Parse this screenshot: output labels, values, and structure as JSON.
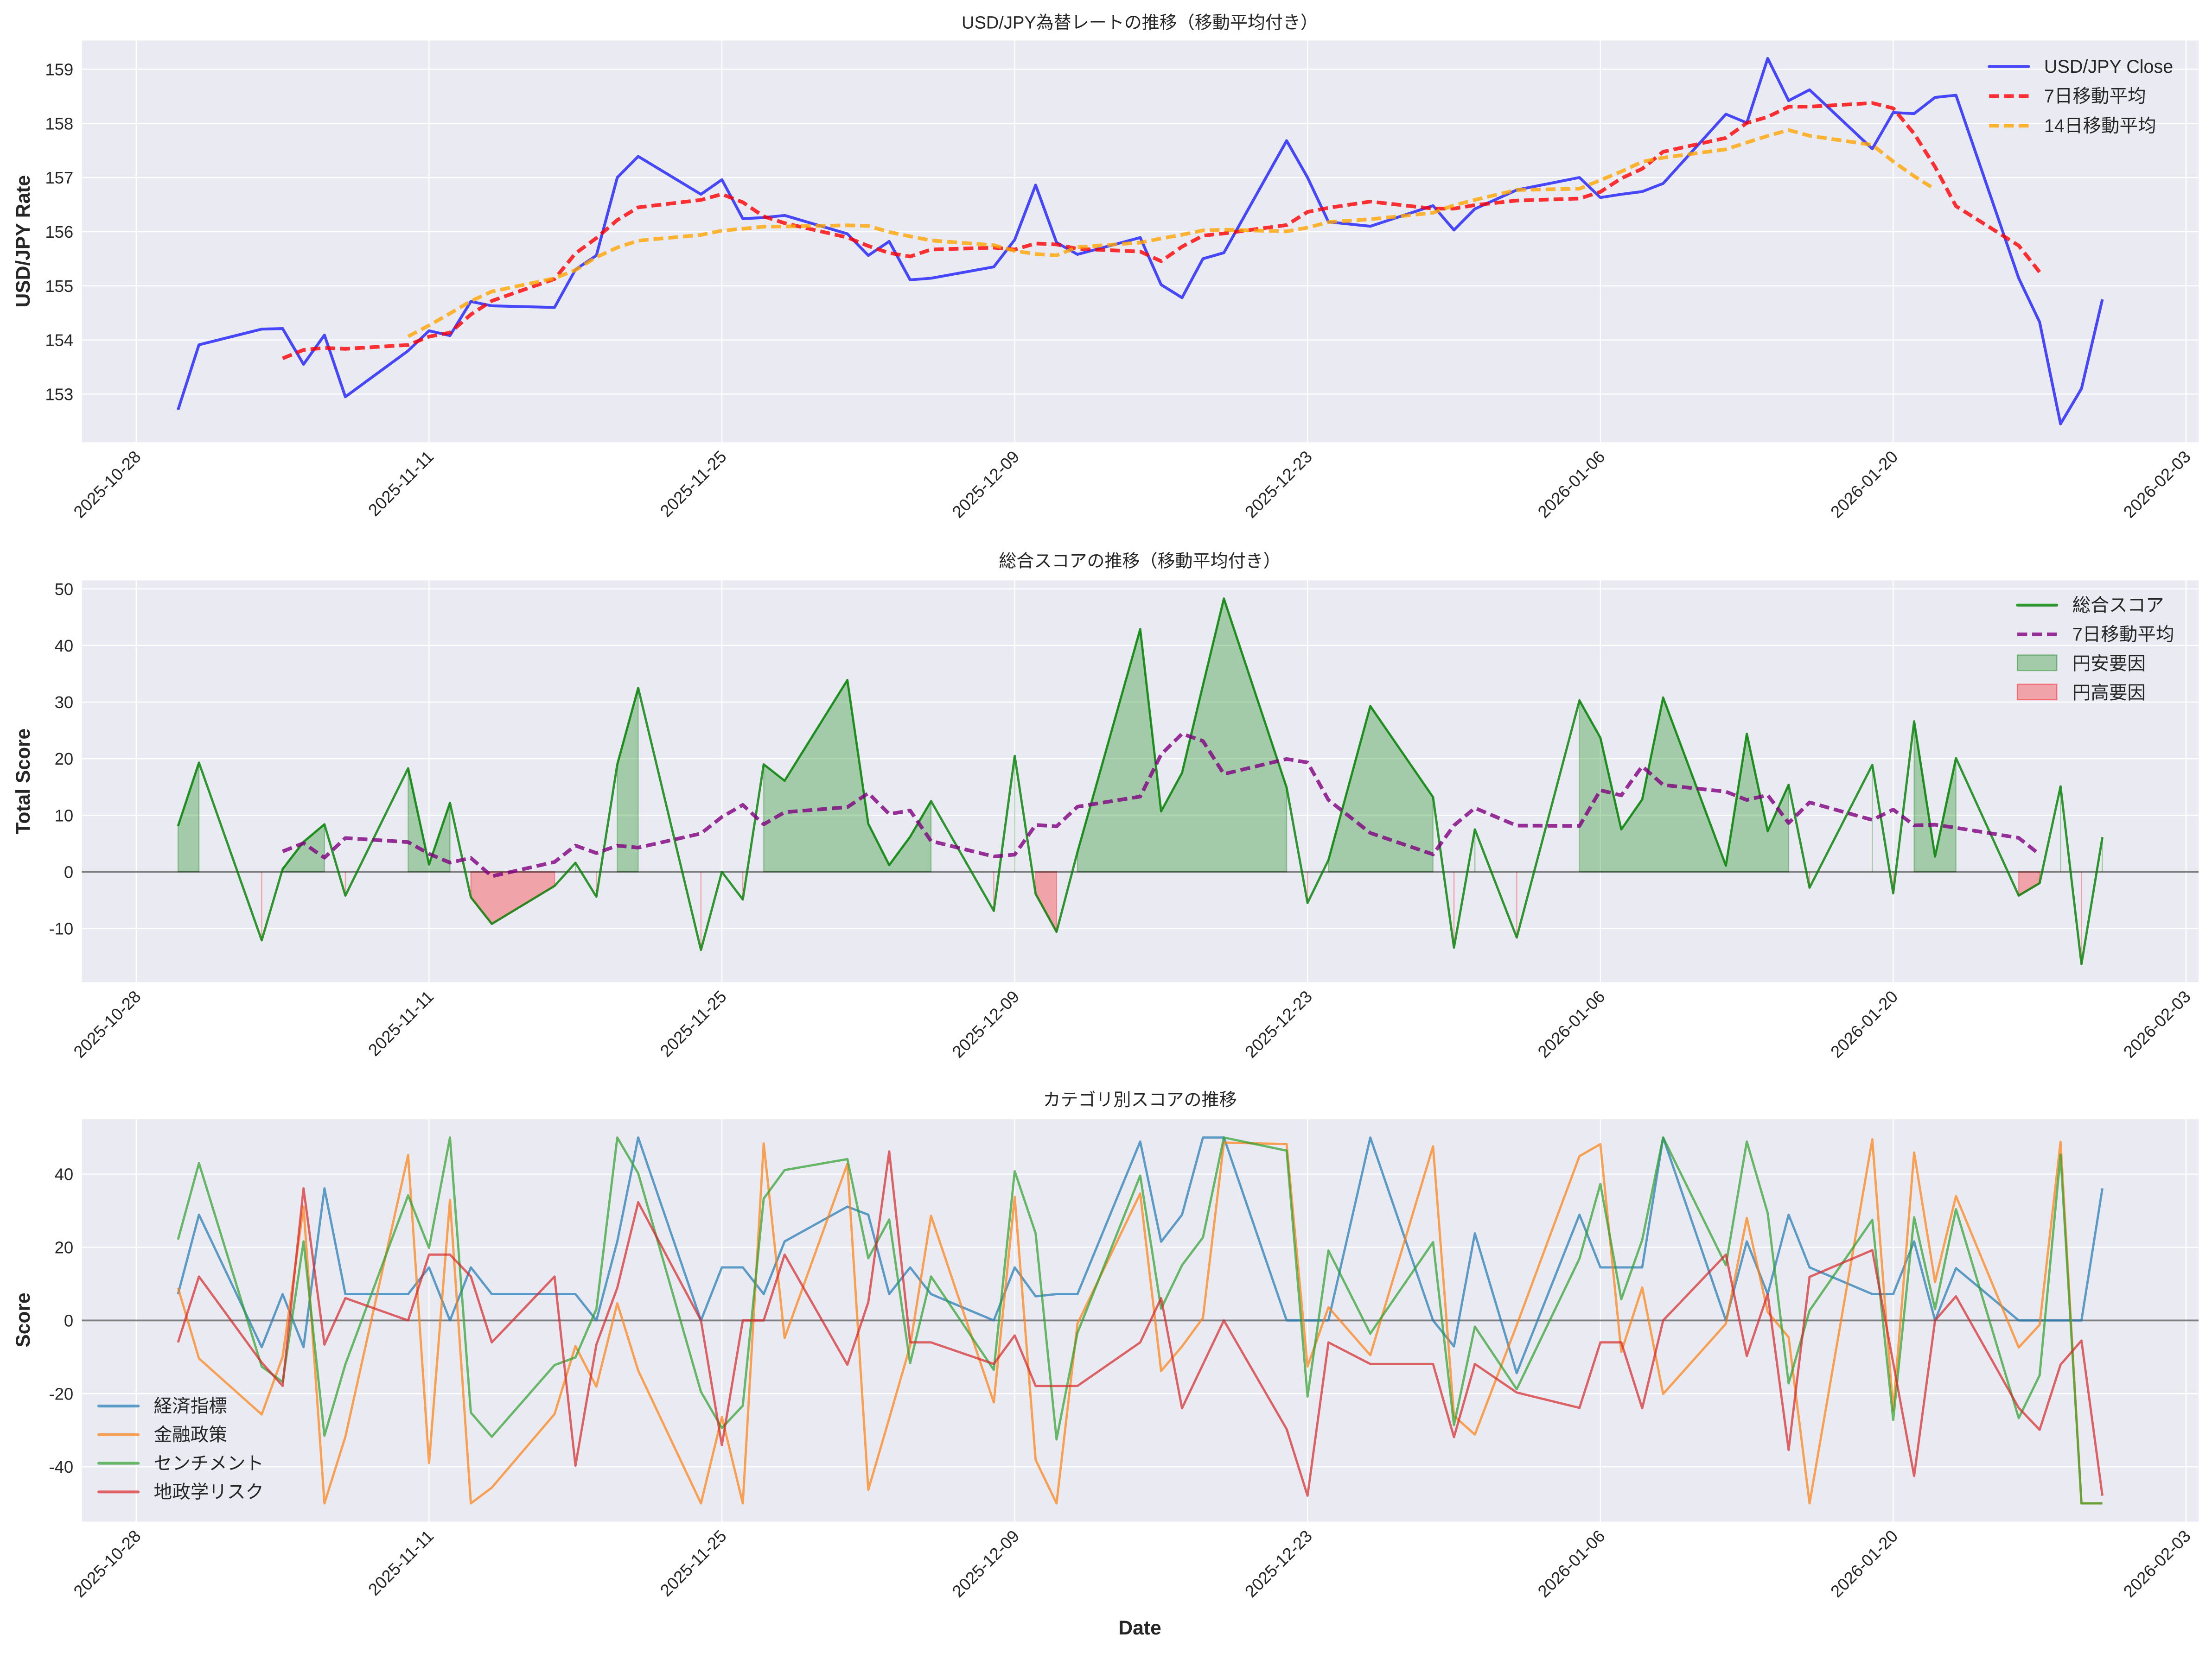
{
  "figure": {
    "xlabel": "Date",
    "background": "#eaeaf2",
    "grid_color": "#ffffff"
  },
  "chart_data": [
    {
      "type": "line",
      "title": "USD/JPY為替レートの推移（移動平均付き）",
      "xlabel": "",
      "ylabel": "USD/JPY Rate",
      "ylim": [
        152.11,
        159.53
      ],
      "y_ticks": [
        153,
        154,
        155,
        156,
        157,
        158,
        159
      ],
      "x_ticks": [
        "2025-10-28",
        "2025-11-11",
        "2025-11-25",
        "2025-12-09",
        "2025-12-23",
        "2026-01-06",
        "2026-01-20",
        "2026-02-03"
      ],
      "grid": true,
      "legend": "upper right",
      "x": [
        "2025-10-30",
        "2025-10-31",
        "2025-11-03",
        "2025-11-04",
        "2025-11-05",
        "2025-11-06",
        "2025-11-07",
        "2025-11-10",
        "2025-11-11",
        "2025-11-12",
        "2025-11-13",
        "2025-11-14",
        "2025-11-17",
        "2025-11-18",
        "2025-11-19",
        "2025-11-20",
        "2025-11-21",
        "2025-11-24",
        "2025-11-25",
        "2025-11-26",
        "2025-11-27",
        "2025-11-28",
        "2025-12-01",
        "2025-12-02",
        "2025-12-03",
        "2025-12-04",
        "2025-12-05",
        "2025-12-08",
        "2025-12-09",
        "2025-12-10",
        "2025-12-11",
        "2025-12-12",
        "2025-12-15",
        "2025-12-16",
        "2025-12-17",
        "2025-12-18",
        "2025-12-19",
        "2025-12-22",
        "2025-12-23",
        "2025-12-24",
        "2025-12-26",
        "2025-12-29",
        "2025-12-30",
        "2025-12-31",
        "2026-01-02",
        "2026-01-05",
        "2026-01-06",
        "2026-01-07",
        "2026-01-08",
        "2026-01-09",
        "2026-01-12",
        "2026-01-13",
        "2026-01-14",
        "2026-01-15",
        "2026-01-16",
        "2026-01-19",
        "2026-01-20",
        "2026-01-21",
        "2026-01-22",
        "2026-01-23",
        "2026-01-26",
        "2026-01-27",
        "2026-01-28",
        "2026-01-29",
        "2026-01-30"
      ],
      "series": [
        {
          "name": "USD/JPY Close",
          "kind": "line",
          "color": "#0000ff",
          "alpha": 0.7,
          "dashed": false,
          "values": [
            152.71,
            153.91,
            154.2,
            154.21,
            153.55,
            154.09,
            152.95,
            153.8,
            154.17,
            154.08,
            154.71,
            154.63,
            154.6,
            155.3,
            155.56,
            157.0,
            157.39,
            156.69,
            156.96,
            156.24,
            156.26,
            156.3,
            155.96,
            155.56,
            155.82,
            155.11,
            155.14,
            155.35,
            155.85,
            156.86,
            155.8,
            155.58,
            155.89,
            155.02,
            154.78,
            155.5,
            155.61,
            157.68,
            157.0,
            156.18,
            156.1,
            156.48,
            156.03,
            156.42,
            156.77,
            157.0,
            156.63,
            156.69,
            156.74,
            156.89,
            158.17,
            158.01,
            159.2,
            158.42,
            158.62,
            157.53,
            158.2,
            158.18,
            158.48,
            158.52,
            155.14,
            154.33,
            152.45,
            153.1,
            154.75
          ]
        },
        {
          "name": "7日移動平均",
          "kind": "rolling",
          "source": 0,
          "window": 7,
          "color": "#ff0000",
          "alpha": 0.8,
          "dashed": true
        },
        {
          "name": "14日移動平均",
          "kind": "rolling",
          "source": 0,
          "window": 14,
          "color": "#ffa500",
          "alpha": 0.8,
          "dashed": true
        }
      ]
    },
    {
      "type": "area",
      "title": "総合スコアの推移（移動平均付き）",
      "xlabel": "",
      "ylabel": "Total Score",
      "ylim": [
        -19.5,
        51.5
      ],
      "y_ticks": [
        -10,
        0,
        10,
        20,
        30,
        40,
        50
      ],
      "x_ticks": [
        "2025-10-28",
        "2025-11-11",
        "2025-11-25",
        "2025-12-09",
        "2025-12-23",
        "2026-01-06",
        "2026-01-20",
        "2026-02-03"
      ],
      "grid": true,
      "hline": 0,
      "legend": "upper right",
      "x": [
        "2025-10-30",
        "2025-10-31",
        "2025-11-03",
        "2025-11-04",
        "2025-11-05",
        "2025-11-06",
        "2025-11-07",
        "2025-11-10",
        "2025-11-11",
        "2025-11-12",
        "2025-11-13",
        "2025-11-14",
        "2025-11-17",
        "2025-11-18",
        "2025-11-19",
        "2025-11-20",
        "2025-11-21",
        "2025-11-24",
        "2025-11-25",
        "2025-11-26",
        "2025-11-27",
        "2025-11-28",
        "2025-12-01",
        "2025-12-02",
        "2025-12-03",
        "2025-12-04",
        "2025-12-05",
        "2025-12-08",
        "2025-12-09",
        "2025-12-10",
        "2025-12-11",
        "2025-12-12",
        "2025-12-15",
        "2025-12-16",
        "2025-12-17",
        "2025-12-18",
        "2025-12-19",
        "2025-12-22",
        "2025-12-23",
        "2025-12-24",
        "2025-12-26",
        "2025-12-29",
        "2025-12-30",
        "2025-12-31",
        "2026-01-02",
        "2026-01-05",
        "2026-01-06",
        "2026-01-07",
        "2026-01-08",
        "2026-01-09",
        "2026-01-12",
        "2026-01-13",
        "2026-01-14",
        "2026-01-15",
        "2026-01-16",
        "2026-01-19",
        "2026-01-20",
        "2026-01-21",
        "2026-01-22",
        "2026-01-23",
        "2026-01-26",
        "2026-01-27",
        "2026-01-28",
        "2026-01-29",
        "2026-01-30"
      ],
      "series": [
        {
          "name": "総合スコア",
          "kind": "line",
          "color": "#008000",
          "alpha": 0.8,
          "dashed": false,
          "values": [
            8.1,
            19.3,
            -12.1,
            0.5,
            5.3,
            8.4,
            -4.2,
            18.3,
            1.3,
            12.2,
            -4.5,
            -9.2,
            -2.5,
            1.6,
            -4.4,
            19.0,
            32.5,
            -13.8,
            0.0,
            -4.9,
            19.0,
            16.1,
            33.9,
            8.5,
            1.2,
            6.2,
            12.5,
            -6.9,
            20.5,
            -3.9,
            -10.6,
            3.5,
            42.9,
            10.7,
            17.5,
            33.0,
            48.3,
            14.9,
            -5.5,
            2.1,
            29.3,
            13.2,
            -13.4,
            7.5,
            -11.6,
            30.3,
            23.7,
            7.5,
            12.8,
            30.8,
            1.1,
            24.4,
            7.2,
            15.4,
            -2.8,
            18.9,
            -3.8,
            26.6,
            2.7,
            20.1,
            -4.2,
            -2.0,
            15.1,
            -16.3,
            6.1
          ]
        },
        {
          "name": "7日移動平均",
          "kind": "rolling",
          "source": 0,
          "window": 7,
          "color": "#800080",
          "alpha": 0.8,
          "dashed": true
        },
        {
          "name": "円安要因",
          "kind": "fill",
          "source": 0,
          "where": "positive",
          "color": "#008000",
          "alpha": 0.3
        },
        {
          "name": "円高要因",
          "kind": "fill",
          "source": 0,
          "where": "negative",
          "color": "#ff0000",
          "alpha": 0.3
        }
      ]
    },
    {
      "type": "line",
      "title": "カテゴリ別スコアの推移",
      "xlabel": "Date",
      "ylabel": "Score",
      "ylim": [
        -55,
        55
      ],
      "y_ticks": [
        -40,
        -20,
        0,
        20,
        40
      ],
      "x_ticks": [
        "2025-10-28",
        "2025-11-11",
        "2025-11-25",
        "2025-12-09",
        "2025-12-23",
        "2026-01-06",
        "2026-01-20",
        "2026-02-03"
      ],
      "grid": true,
      "hline": 0,
      "legend": "lower left",
      "x": [
        "2025-10-30",
        "2025-10-31",
        "2025-11-03",
        "2025-11-04",
        "2025-11-05",
        "2025-11-06",
        "2025-11-07",
        "2025-11-10",
        "2025-11-11",
        "2025-11-12",
        "2025-11-13",
        "2025-11-14",
        "2025-11-17",
        "2025-11-18",
        "2025-11-19",
        "2025-11-20",
        "2025-11-21",
        "2025-11-24",
        "2025-11-25",
        "2025-11-26",
        "2025-11-27",
        "2025-11-28",
        "2025-12-01",
        "2025-12-02",
        "2025-12-03",
        "2025-12-04",
        "2025-12-05",
        "2025-12-08",
        "2025-12-09",
        "2025-12-10",
        "2025-12-11",
        "2025-12-12",
        "2025-12-15",
        "2025-12-16",
        "2025-12-17",
        "2025-12-18",
        "2025-12-19",
        "2025-12-22",
        "2025-12-23",
        "2025-12-24",
        "2025-12-26",
        "2025-12-29",
        "2025-12-30",
        "2025-12-31",
        "2026-01-02",
        "2026-01-05",
        "2026-01-06",
        "2026-01-07",
        "2026-01-08",
        "2026-01-09",
        "2026-01-12",
        "2026-01-13",
        "2026-01-14",
        "2026-01-15",
        "2026-01-16",
        "2026-01-19",
        "2026-01-20",
        "2026-01-21",
        "2026-01-22",
        "2026-01-23",
        "2026-01-26",
        "2026-01-27",
        "2026-01-28",
        "2026-01-29",
        "2026-01-30"
      ],
      "series": [
        {
          "name": "経済指標",
          "kind": "line",
          "color": "#1f77b4",
          "alpha": 0.7,
          "dashed": false,
          "values": [
            7.2,
            28.9,
            -7.3,
            7.2,
            -7.3,
            36.1,
            7.2,
            7.2,
            14.5,
            0,
            14.5,
            7.2,
            7.2,
            7.2,
            0,
            21.6,
            50,
            0,
            14.5,
            14.5,
            7.2,
            21.6,
            31.1,
            28.9,
            7.2,
            14.5,
            7.2,
            0,
            14.5,
            6.6,
            7.2,
            7.2,
            48.9,
            21.5,
            28.9,
            50,
            50,
            0,
            0,
            0,
            50,
            0,
            -7.1,
            23.8,
            -14.4,
            28.9,
            14.5,
            14.5,
            14.5,
            50,
            0,
            21.6,
            7.2,
            28.9,
            14.5,
            7.2,
            7.2,
            21.6,
            0,
            14.3,
            0,
            0,
            0,
            0,
            36.1
          ]
        },
        {
          "name": "金融政策",
          "kind": "line",
          "color": "#ff7f0e",
          "alpha": 0.7,
          "dashed": false,
          "values": [
            8.9,
            -10.4,
            -25.7,
            -9.9,
            31.1,
            -50,
            -31.8,
            45.2,
            -39.0,
            32.9,
            -50,
            -45.7,
            -25.6,
            -7.0,
            -18.1,
            4.7,
            -13.7,
            -50,
            -26.4,
            -50,
            48.4,
            -4.8,
            42.8,
            -46.3,
            -26.8,
            -7.0,
            28.6,
            -22.4,
            33.8,
            -38.1,
            -50,
            -0.9,
            34.7,
            -13.8,
            -7.1,
            0.7,
            48.6,
            48.2,
            -12.6,
            3.6,
            -9.5,
            47.6,
            -26.1,
            -31.2,
            -1.3,
            44.9,
            48.2,
            -8.6,
            9.0,
            -20.1,
            -0.9,
            28.0,
            2.3,
            -4.6,
            -50,
            49.5,
            -24.6,
            45.9,
            10.5,
            34.0,
            -7.4,
            -1.2,
            48.8,
            -50,
            -50
          ]
        },
        {
          "name": "センチメント",
          "kind": "line",
          "color": "#2ca02c",
          "alpha": 0.7,
          "dashed": false,
          "values": [
            22.1,
            43.0,
            -12.6,
            -16.8,
            21.6,
            -31.5,
            -12.0,
            34.2,
            19.8,
            50,
            -25.2,
            -31.8,
            -12.2,
            -10.1,
            3.1,
            50,
            40.2,
            -19.5,
            -29.4,
            -23.3,
            33.3,
            41.1,
            44.1,
            17.0,
            27.6,
            -11.7,
            12.0,
            -13.5,
            40.8,
            23.8,
            -32.5,
            -3.4,
            39.6,
            3.2,
            15.1,
            22.7,
            50,
            46.4,
            -20.8,
            19.1,
            -3.6,
            21.4,
            -28.6,
            -1.7,
            -18.8,
            16.9,
            37.3,
            5.8,
            22.0,
            50,
            15.1,
            48.9,
            29.3,
            -17.2,
            2.7,
            27.5,
            -27.2,
            28.2,
            3.1,
            30.4,
            -26.7,
            -15.0,
            45.3,
            -50,
            -50
          ]
        },
        {
          "name": "地政学リスク",
          "kind": "line",
          "color": "#d62728",
          "alpha": 0.7,
          "dashed": false,
          "values": [
            -6.0,
            12.0,
            -11.5,
            -17.9,
            36.1,
            -6.6,
            6.1,
            0,
            18.0,
            18.0,
            12.0,
            -6.0,
            12.0,
            -39.7,
            -6.6,
            8.9,
            32.3,
            0,
            -34.1,
            0,
            0,
            18.0,
            -12.1,
            5.0,
            46.2,
            -6.0,
            -6.0,
            -11.9,
            -4.1,
            -17.9,
            -17.9,
            -17.9,
            -6.0,
            6.1,
            -24.0,
            -12.0,
            0,
            -29.7,
            -47.9,
            -6.0,
            -11.9,
            -11.9,
            -31.9,
            -11.9,
            -19.7,
            -23.9,
            -6.0,
            -6.0,
            -24.0,
            0,
            18.0,
            -9.7,
            7.2,
            -35.4,
            11.9,
            19.2,
            -11.6,
            -42.5,
            0,
            6.6,
            -23.9,
            -29.9,
            -12.1,
            -5.5,
            -47.9
          ]
        }
      ]
    }
  ]
}
